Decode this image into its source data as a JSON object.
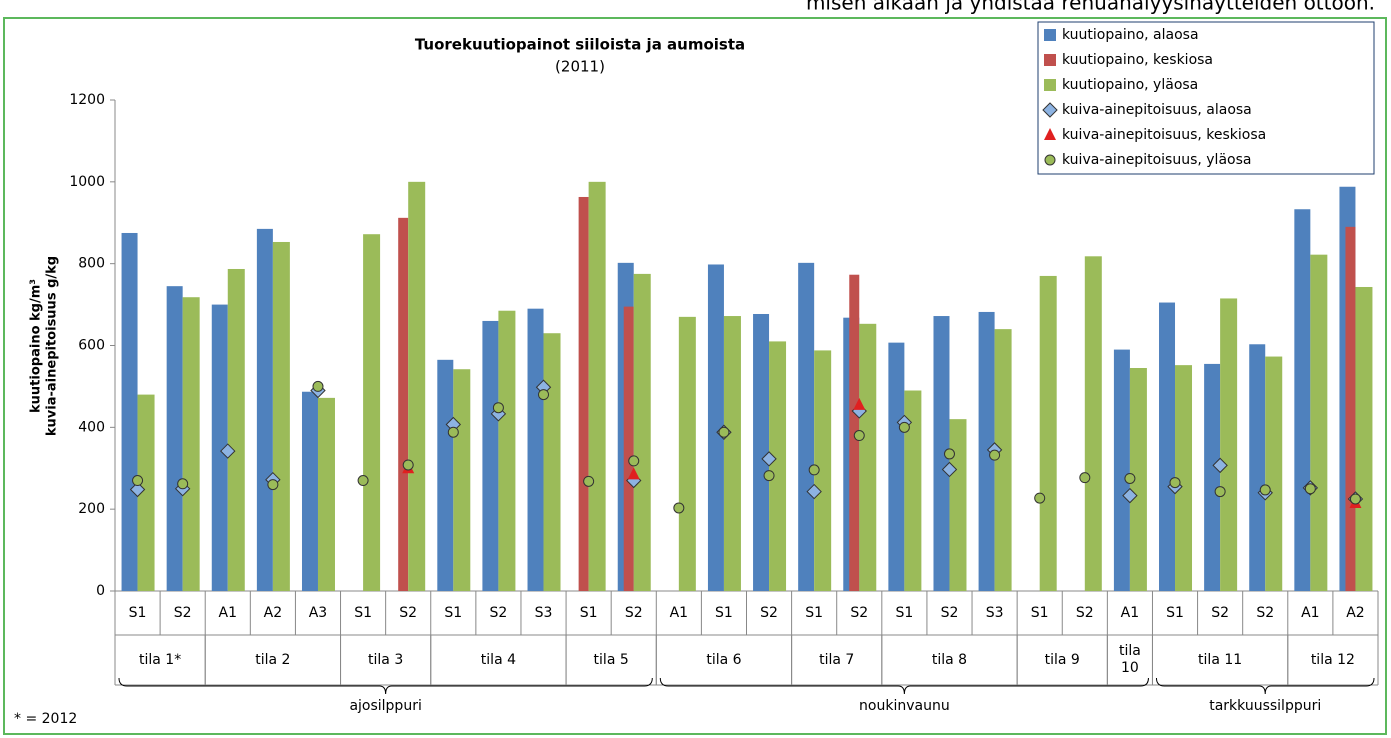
{
  "header_text": "misen aikaan ja yhdistää rehuanalyysinäytteiden ottoon.",
  "chart_data": {
    "type": "bar",
    "title": "Tuorekuutiopainot siiloista ja aumoista",
    "subtitle": "(2011)",
    "y_label": [
      "kuutiopaino kg/m³",
      "kuvia-ainepitoisuus g/kg"
    ],
    "footnote": "* = 2012",
    "ylim": [
      0,
      1200
    ],
    "yticks": [
      0,
      200,
      400,
      600,
      800,
      1000,
      1200
    ],
    "grid": false,
    "legend": "upper right",
    "categories": [
      {
        "label": "S1",
        "group": "tila 1*",
        "section": "ajosilppuri"
      },
      {
        "label": "S2",
        "group": "tila 1*",
        "section": "ajosilppuri"
      },
      {
        "label": "A1",
        "group": "tila 2",
        "section": "ajosilppuri"
      },
      {
        "label": "A2",
        "group": "tila 2",
        "section": "ajosilppuri"
      },
      {
        "label": "A3",
        "group": "tila 2",
        "section": "ajosilppuri"
      },
      {
        "label": "S1",
        "group": "tila 3",
        "section": "ajosilppuri"
      },
      {
        "label": "S2",
        "group": "tila 3",
        "section": "ajosilppuri"
      },
      {
        "label": "S1",
        "group": "tila 4",
        "section": "ajosilppuri"
      },
      {
        "label": "S2",
        "group": "tila 4",
        "section": "ajosilppuri"
      },
      {
        "label": "S3",
        "group": "tila 4",
        "section": "ajosilppuri"
      },
      {
        "label": "S1",
        "group": "tila 5",
        "section": "ajosilppuri"
      },
      {
        "label": "S2",
        "group": "tila 5",
        "section": "ajosilppuri"
      },
      {
        "label": "A1",
        "group": "tila 6",
        "section": "noukinvaunu"
      },
      {
        "label": "S1",
        "group": "tila 6",
        "section": "noukinvaunu"
      },
      {
        "label": "S2",
        "group": "tila 6",
        "section": "noukinvaunu"
      },
      {
        "label": "S1",
        "group": "tila  7",
        "section": "noukinvaunu"
      },
      {
        "label": "S2",
        "group": "tila  7",
        "section": "noukinvaunu"
      },
      {
        "label": "S1",
        "group": "tila 8",
        "section": "noukinvaunu"
      },
      {
        "label": "S2",
        "group": "tila 8",
        "section": "noukinvaunu"
      },
      {
        "label": "S3",
        "group": "tila 8",
        "section": "noukinvaunu"
      },
      {
        "label": "S1",
        "group": "tila 9",
        "section": "noukinvaunu"
      },
      {
        "label": "S2",
        "group": "tila 9",
        "section": "noukinvaunu"
      },
      {
        "label": "A1",
        "group": "tila 10",
        "section": "noukinvaunu"
      },
      {
        "label": "S1",
        "group": "tila 11",
        "section": "tarkkuussilppuri"
      },
      {
        "label": "S2",
        "group": "tila 11",
        "section": "tarkkuussilppuri"
      },
      {
        "label": "S2",
        "group": "tila 11",
        "section": "tarkkuussilppuri"
      },
      {
        "label": "A1",
        "group": "tila 12",
        "section": "tarkkuussilppuri"
      },
      {
        "label": "A2",
        "group": "tila 12",
        "section": "tarkkuussilppuri"
      }
    ],
    "series": [
      {
        "name": "kuutiopaino, alaosa",
        "type": "bar",
        "color": "#4f81bd",
        "values": [
          875,
          745,
          700,
          885,
          487,
          null,
          null,
          565,
          660,
          690,
          null,
          802,
          null,
          798,
          677,
          802,
          668,
          607,
          672,
          682,
          null,
          null,
          590,
          705,
          555,
          603,
          933,
          988
        ]
      },
      {
        "name": "kuutiopaino, keskiosa",
        "type": "bar",
        "color": "#c0504d",
        "values": [
          null,
          null,
          null,
          null,
          null,
          null,
          912,
          null,
          null,
          null,
          963,
          695,
          null,
          null,
          null,
          null,
          773,
          null,
          null,
          null,
          null,
          null,
          null,
          null,
          null,
          null,
          null,
          890
        ]
      },
      {
        "name": "kuutiopaino, yläosa",
        "type": "bar",
        "color": "#9bbb59",
        "values": [
          480,
          718,
          787,
          853,
          472,
          872,
          1000,
          542,
          685,
          630,
          1000,
          775,
          670,
          672,
          610,
          588,
          653,
          490,
          420,
          640,
          770,
          818,
          545,
          552,
          715,
          573,
          822,
          743
        ]
      },
      {
        "name": "kuiva-ainepitoisuus, alaosa",
        "type": "scatter",
        "marker": "diamond",
        "color": "#8db3e2",
        "values": [
          248,
          250,
          342,
          272,
          490,
          null,
          null,
          407,
          433,
          498,
          null,
          270,
          null,
          388,
          323,
          243,
          440,
          412,
          297,
          345,
          null,
          null,
          233,
          255,
          307,
          240,
          252,
          225
        ]
      },
      {
        "name": "kuiva-ainepitoisuus, keskiosa",
        "type": "scatter",
        "marker": "triangle",
        "color": "#e02020",
        "values": [
          null,
          null,
          null,
          null,
          null,
          null,
          300,
          null,
          null,
          null,
          null,
          285,
          null,
          null,
          null,
          null,
          455,
          null,
          null,
          null,
          null,
          null,
          null,
          null,
          null,
          null,
          null,
          215
        ]
      },
      {
        "name": "kuiva-ainepitoisuus, yläosa",
        "type": "scatter",
        "marker": "circle",
        "color": "#9bbb59",
        "values": [
          270,
          262,
          null,
          260,
          500,
          270,
          308,
          388,
          448,
          480,
          268,
          318,
          203,
          388,
          282,
          296,
          380,
          400,
          335,
          332,
          227,
          277,
          275,
          265,
          243,
          247,
          250,
          225
        ]
      }
    ]
  }
}
